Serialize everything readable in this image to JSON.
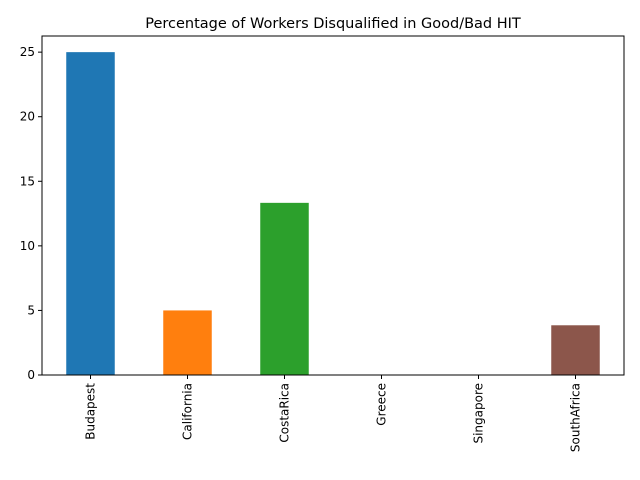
{
  "chart_data": {
    "type": "bar",
    "title": "Percentage of Workers Disqualified in Good/Bad HIT",
    "xlabel": "",
    "ylabel": "",
    "categories": [
      "Budapest",
      "California",
      "CostaRica",
      "Greece",
      "Singapore",
      "SouthAfrica"
    ],
    "values": [
      25.0,
      5.0,
      13.33,
      0,
      0,
      3.85
    ],
    "colors": [
      "#1f77b4",
      "#ff7f0e",
      "#2ca02c",
      "#d62728",
      "#9467bd",
      "#8c564b"
    ],
    "ylim": [
      0,
      26.25
    ],
    "yticks": [
      0,
      5,
      10,
      15,
      20,
      25
    ],
    "grid": false,
    "legend": "none"
  }
}
